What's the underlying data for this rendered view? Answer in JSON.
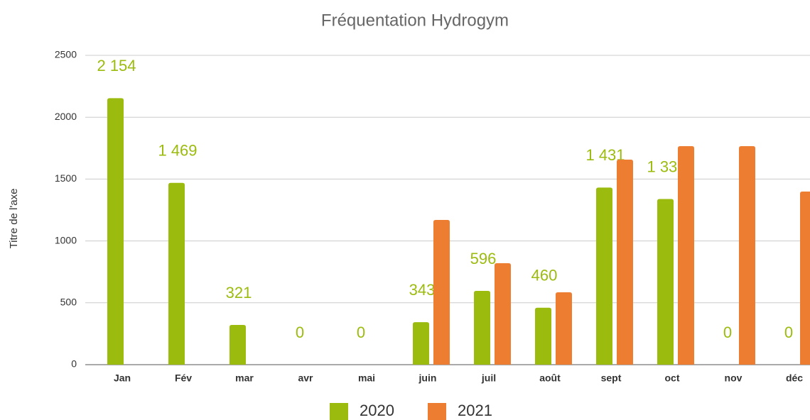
{
  "chart_data": {
    "type": "bar",
    "title": "Fréquentation Hydrogym",
    "y_label": "Titre de l'axe",
    "categories": [
      "Jan",
      "Fév",
      "mar",
      "avr",
      "mai",
      "juin",
      "juil",
      "août",
      "sept",
      "oct",
      "nov",
      "déc"
    ],
    "series": [
      {
        "name": "2020",
        "color": "#9bbb0f",
        "values": [
          2154,
          1469,
          321,
          0,
          0,
          343,
          596,
          460,
          1431,
          1339,
          0,
          0
        ],
        "value_labels": [
          "2 154",
          "1 469",
          "321",
          "0",
          "0",
          "343",
          "596",
          "460",
          "1 431",
          "1 339",
          "0",
          "0"
        ]
      },
      {
        "name": "2021",
        "color": "#ed7d31",
        "values": [
          null,
          null,
          null,
          null,
          null,
          1170,
          820,
          585,
          1657,
          1766,
          1766,
          1399
        ]
      }
    ],
    "ylim": [
      0,
      2500
    ],
    "yticks": [
      0,
      500,
      1000,
      1500,
      2000,
      2500
    ],
    "grid": true,
    "legend": "bottom"
  }
}
